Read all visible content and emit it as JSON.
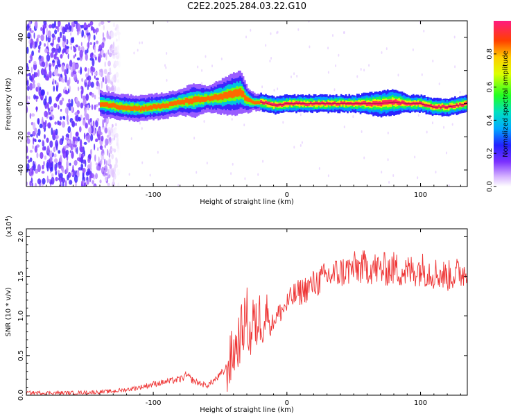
{
  "figure": {
    "title": "C2E2.2025.284.03.22.G10"
  },
  "chart_data": [
    {
      "type": "heatmap",
      "xlabel": "Height of straight line (km)",
      "ylabel": "Frequency (Hz)",
      "xlim": [
        -195,
        135
      ],
      "ylim": [
        -50,
        50
      ],
      "x_ticks": [
        -100,
        0,
        100
      ],
      "y_ticks": [
        -40,
        -20,
        0,
        20,
        40
      ],
      "description_of_data": "spectral amplitude; dominant ridge near 0 Hz, noise below -130 km",
      "ridge": {
        "x": [
          -140,
          -125,
          -110,
          -100,
          -90,
          -80,
          -70,
          -60,
          -50,
          -40,
          -35,
          -30,
          -25,
          -20,
          -10,
          0,
          10,
          30,
          50,
          70,
          80,
          90,
          100,
          110,
          120,
          135
        ],
        "y": [
          0,
          -2,
          -3,
          -2,
          -1,
          1,
          2,
          3,
          4,
          6,
          7,
          2,
          1,
          1,
          -1,
          0,
          0,
          0,
          0,
          0,
          1,
          0,
          0,
          -2,
          -2,
          0
        ],
        "width": [
          3,
          3,
          3,
          3,
          3,
          3,
          4,
          3,
          4,
          5,
          5,
          3,
          2,
          2,
          2,
          2,
          2,
          2,
          2,
          3,
          3,
          2,
          2,
          2,
          2,
          2
        ]
      },
      "noise_region": {
        "x_range": [
          -195,
          -125
        ]
      }
    },
    {
      "type": "line",
      "xlabel": "Height of straight line (km)",
      "ylabel": "SNR (10 * v/v)",
      "y_exponent_label": "(x10",
      "y_exponent_power": "4",
      "y_exponent_close": ")",
      "xlim": [
        -195,
        135
      ],
      "ylim": [
        0,
        2.1
      ],
      "x_ticks": [
        -100,
        0,
        100
      ],
      "y_ticks": [
        0.0,
        0.5,
        1.0,
        1.5,
        2.0
      ],
      "y_tick_labels": [
        "0.0",
        "0.5",
        "1.0",
        "1.5",
        "2.0"
      ],
      "series": [
        {
          "color": "#ee3333",
          "x": [
            -195,
            -180,
            -160,
            -140,
            -130,
            -120,
            -110,
            -100,
            -90,
            -80,
            -75,
            -70,
            -60,
            -55,
            -50,
            -45,
            -42,
            -40,
            -38,
            -35,
            -32,
            -30,
            -28,
            -26,
            -25,
            -24,
            -22,
            -20,
            -18,
            -15,
            -12,
            -10,
            -7,
            -5,
            -2,
            0,
            5,
            10,
            15,
            20,
            25,
            30,
            40,
            50,
            60,
            70,
            80,
            90,
            100,
            110,
            120,
            130,
            135
          ],
          "y": [
            0.03,
            0.03,
            0.03,
            0.04,
            0.05,
            0.07,
            0.1,
            0.14,
            0.17,
            0.2,
            0.25,
            0.18,
            0.12,
            0.18,
            0.25,
            0.35,
            0.45,
            0.55,
            0.6,
            0.75,
            0.9,
            1.05,
            0.7,
            0.85,
            1.1,
            0.75,
            0.95,
            1.0,
            0.95,
            1.05,
            0.85,
            0.95,
            1.0,
            1.05,
            1.1,
            1.15,
            1.25,
            1.3,
            1.35,
            1.4,
            1.45,
            1.5,
            1.55,
            1.6,
            1.62,
            1.58,
            1.6,
            1.55,
            1.6,
            1.55,
            1.5,
            1.55,
            1.55
          ]
        }
      ]
    }
  ],
  "colorbar": {
    "label": "Normalized spectral amplitude",
    "ticks": [
      0.0,
      0.2,
      0.4,
      0.6,
      0.8
    ],
    "tick_labels": [
      "0.0",
      "0.2",
      "0.4",
      "0.6",
      "0.8"
    ],
    "range": [
      0,
      1.0
    ]
  }
}
